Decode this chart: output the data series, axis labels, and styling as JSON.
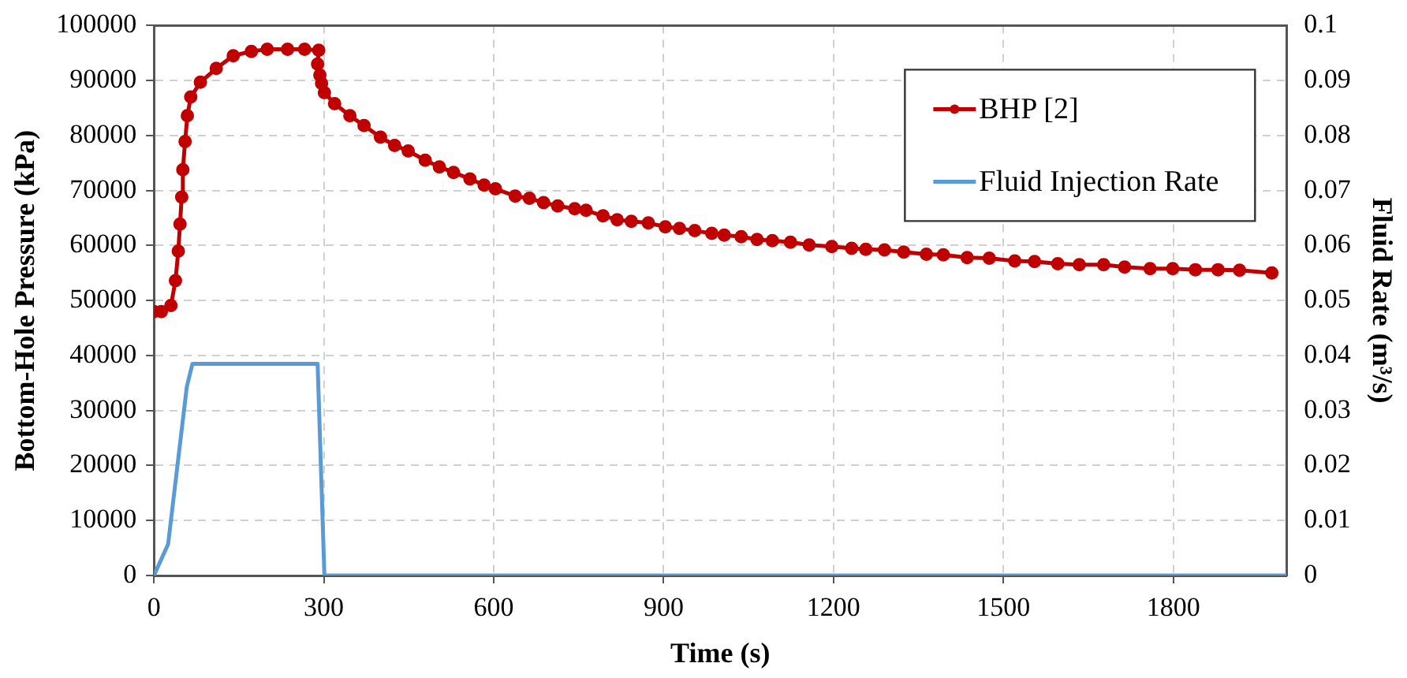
{
  "chart_data": {
    "type": "line",
    "xlabel": "Time (s)",
    "ylabel": "Bottom-Hole Pressure (kPa)",
    "y2label": "Fluid Rate (m³/s)",
    "xlim": [
      0,
      2000
    ],
    "xticks": [
      0,
      300,
      600,
      900,
      1200,
      1500,
      1800
    ],
    "ylim": [
      0,
      100000
    ],
    "yticks": [
      0,
      10000,
      20000,
      30000,
      40000,
      50000,
      60000,
      70000,
      80000,
      90000,
      100000
    ],
    "y2lim": [
      0,
      0.1
    ],
    "y2ticks": [
      0,
      0.01,
      0.02,
      0.03,
      0.04,
      0.05,
      0.06,
      0.07,
      0.08,
      0.09,
      0.1
    ],
    "grid": true,
    "legend": "top right",
    "series": [
      {
        "name": "BHP [2]",
        "color": "#c00000",
        "marker": "circle",
        "x": [
          0,
          13,
          30,
          38,
          43,
          46,
          49,
          51,
          55,
          59,
          65,
          82,
          110,
          140,
          172,
          200,
          236,
          266,
          291,
          289,
          293,
          296,
          301,
          319,
          346,
          371,
          400,
          425,
          449,
          479,
          504,
          529,
          558,
          583,
          603,
          638,
          663,
          688,
          713,
          743,
          763,
          793,
          818,
          843,
          873,
          903,
          928,
          955,
          985,
          1007,
          1037,
          1065,
          1092,
          1124,
          1157,
          1197,
          1232,
          1257,
          1290,
          1324,
          1364,
          1394,
          1436,
          1475,
          1520,
          1555,
          1596,
          1634,
          1677,
          1714,
          1759,
          1799,
          1839,
          1879,
          1917,
          1974
        ],
        "values": [
          48000,
          48000,
          49100,
          53600,
          59000,
          63900,
          68800,
          73800,
          78900,
          83600,
          87000,
          89700,
          92200,
          94500,
          95300,
          95700,
          95700,
          95700,
          95500,
          93000,
          91000,
          89500,
          87800,
          85800,
          83600,
          81800,
          79700,
          78200,
          77200,
          75500,
          74300,
          73300,
          72100,
          71000,
          70300,
          69000,
          68600,
          67800,
          67200,
          66700,
          66400,
          65400,
          64700,
          64400,
          64100,
          63400,
          63100,
          62700,
          62200,
          61900,
          61600,
          61100,
          60900,
          60600,
          60100,
          59800,
          59500,
          59300,
          59200,
          58800,
          58400,
          58300,
          57800,
          57700,
          57200,
          57100,
          56700,
          56500,
          56500,
          56100,
          55800,
          55800,
          55600,
          55600,
          55500,
          55000
        ]
      },
      {
        "name": "Fluid Injection Rate",
        "color": "#5b9bd5",
        "marker": "none",
        "axis": "y2",
        "x": [
          0,
          25,
          58,
          68,
          289,
          301,
          2000
        ],
        "values": [
          0,
          0.0057,
          0.0343,
          0.0385,
          0.0385,
          0,
          0
        ]
      }
    ]
  }
}
